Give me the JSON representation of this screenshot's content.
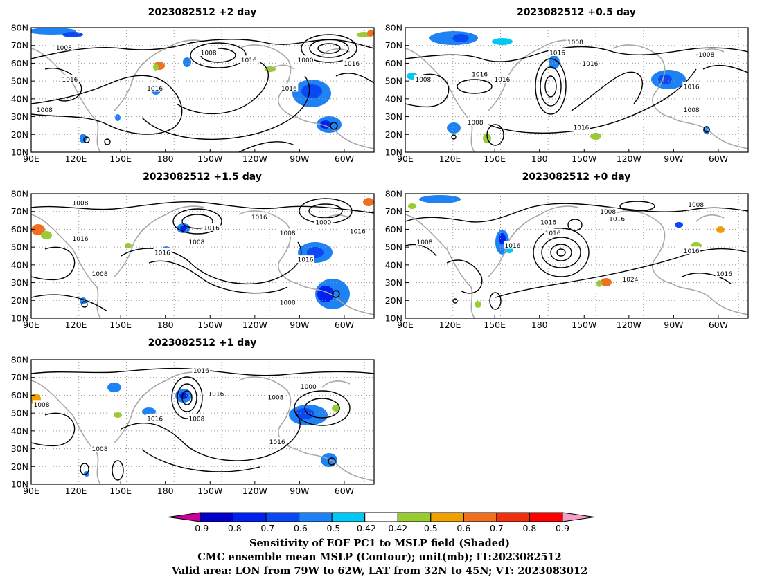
{
  "panels": [
    {
      "id": "p2",
      "title": "2023082512 +2 day"
    },
    {
      "id": "p05",
      "title": "2023082512 +0.5 day"
    },
    {
      "id": "p15",
      "title": "2023082512 +1.5 day"
    },
    {
      "id": "p0",
      "title": "2023082512 +0 day"
    },
    {
      "id": "p1",
      "title": "2023082512 +1 day"
    }
  ],
  "axes": {
    "lat_ticks": [
      "80N",
      "70N",
      "60N",
      "50N",
      "40N",
      "30N",
      "20N",
      "10N"
    ],
    "lon_ticks": [
      "90E",
      "120E",
      "150E",
      "180",
      "150W",
      "120W",
      "90W",
      "60W"
    ]
  },
  "map_data": {
    "type": "contour_shaded_map",
    "lon_range": [
      "90E",
      "40W"
    ],
    "lat_range": [
      10,
      80
    ],
    "projection": "cylindrical equidistant",
    "contour_variable": "MSLP (mb)",
    "shaded_variable": "Sensitivity of EOF PC1 to MSLP",
    "contour_labels": {
      "p2": [
        {
          "text": "1008",
          "lon": 112,
          "lat": 69
        },
        {
          "text": "1008",
          "lon": 209,
          "lat": 66
        },
        {
          "text": "1016",
          "lon": 236,
          "lat": 62
        },
        {
          "text": "1000",
          "lon": 274,
          "lat": 62
        },
        {
          "text": "1016",
          "lon": 305,
          "lat": 60
        },
        {
          "text": "1016",
          "lon": 116,
          "lat": 51
        },
        {
          "text": "1016",
          "lon": 173,
          "lat": 46
        },
        {
          "text": "1016",
          "lon": 263,
          "lat": 46
        },
        {
          "text": "1008",
          "lon": 99,
          "lat": 34
        }
      ],
      "p05": [
        {
          "text": "1008",
          "lon": 204,
          "lat": 72
        },
        {
          "text": "1016",
          "lon": 192,
          "lat": 66
        },
        {
          "text": "1016",
          "lon": 214,
          "lat": 60
        },
        {
          "text": "1008",
          "lon": 292,
          "lat": 65
        },
        {
          "text": "1016",
          "lon": 140,
          "lat": 54
        },
        {
          "text": "1008",
          "lon": 102,
          "lat": 51
        },
        {
          "text": "1016",
          "lon": 155,
          "lat": 51
        },
        {
          "text": "1016",
          "lon": 282,
          "lat": 47
        },
        {
          "text": "1008",
          "lon": 282,
          "lat": 34
        },
        {
          "text": "1008",
          "lon": 137,
          "lat": 27
        },
        {
          "text": "1016",
          "lon": 208,
          "lat": 24
        }
      ],
      "p15": [
        {
          "text": "1008",
          "lon": 123,
          "lat": 75
        },
        {
          "text": "1016",
          "lon": 243,
          "lat": 67
        },
        {
          "text": "1016",
          "lon": 211,
          "lat": 61
        },
        {
          "text": "1000",
          "lon": 286,
          "lat": 64
        },
        {
          "text": "1016",
          "lon": 309,
          "lat": 59
        },
        {
          "text": "1008",
          "lon": 262,
          "lat": 58
        },
        {
          "text": "1008",
          "lon": 201,
          "lat": 53
        },
        {
          "text": "1016",
          "lon": 123,
          "lat": 55
        },
        {
          "text": "1016",
          "lon": 178,
          "lat": 47
        },
        {
          "text": "1016",
          "lon": 274,
          "lat": 43
        },
        {
          "text": "1008",
          "lon": 136,
          "lat": 35
        },
        {
          "text": "1008",
          "lon": 262,
          "lat": 19
        }
      ],
      "p0": [
        {
          "text": "1008",
          "lon": 285,
          "lat": 74
        },
        {
          "text": "1008",
          "lon": 226,
          "lat": 70
        },
        {
          "text": "1016",
          "lon": 232,
          "lat": 66
        },
        {
          "text": "1016",
          "lon": 186,
          "lat": 64
        },
        {
          "text": "1016",
          "lon": 189,
          "lat": 58
        },
        {
          "text": "1008",
          "lon": 103,
          "lat": 53
        },
        {
          "text": "1016",
          "lon": 162,
          "lat": 51
        },
        {
          "text": "1016",
          "lon": 282,
          "lat": 48
        },
        {
          "text": "1024",
          "lon": 241,
          "lat": 32
        },
        {
          "text": "1016",
          "lon": 304,
          "lat": 35
        }
      ],
      "p1": [
        {
          "text": "1016",
          "lon": 204,
          "lat": 74
        },
        {
          "text": "1016",
          "lon": 214,
          "lat": 61
        },
        {
          "text": "1008",
          "lon": 254,
          "lat": 59
        },
        {
          "text": "1000",
          "lon": 276,
          "lat": 65
        },
        {
          "text": "1008",
          "lon": 97,
          "lat": 55
        },
        {
          "text": "1016",
          "lon": 173,
          "lat": 47
        },
        {
          "text": "1008",
          "lon": 201,
          "lat": 47
        },
        {
          "text": "1016",
          "lon": 255,
          "lat": 34
        },
        {
          "text": "1008",
          "lon": 136,
          "lat": 30
        }
      ]
    }
  },
  "colorbar": {
    "labels": [
      "-0.9",
      "-0.8",
      "-0.7",
      "-0.6",
      "-0.5",
      "-0.42",
      "0.42",
      "0.5",
      "0.6",
      "0.7",
      "0.8",
      "0.9"
    ],
    "colors": [
      "#cc0099",
      "#0000c8",
      "#0022ee",
      "#0a48f5",
      "#1e82f5",
      "#00c8f5",
      "#ffffff",
      "#99cc33",
      "#f0a000",
      "#f07020",
      "#f03010",
      "#ff0000",
      "#f5a0c8"
    ]
  },
  "caption": {
    "line1": "Sensitivity of EOF PC1 to MSLP field (Shaded)",
    "line2": "CMC ensemble mean MSLP (Contour); unit(mb); IT:2023082512",
    "line3": "Valid area: LON from 79W to 62W, LAT from 32N to 45N; VT: 2023083012"
  }
}
